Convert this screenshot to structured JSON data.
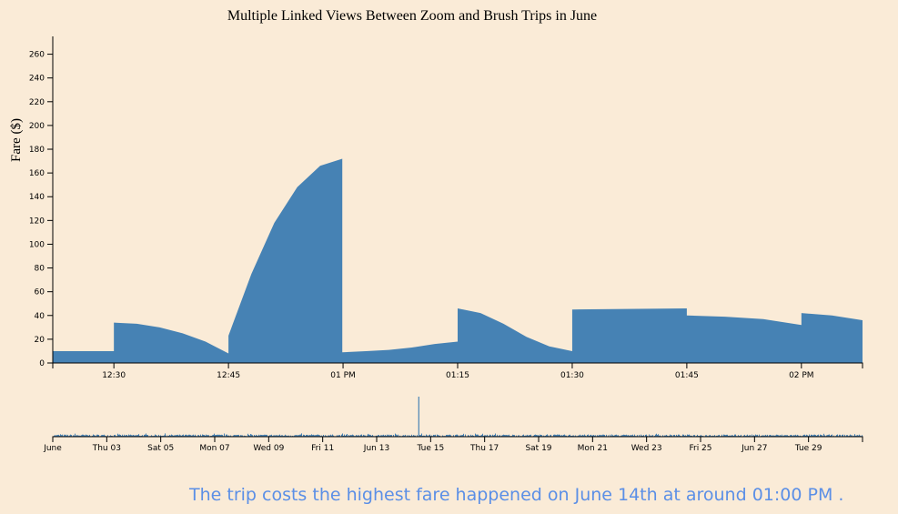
{
  "caption": "The trip costs the highest fare happened on June 14th at around 01:00 PM .",
  "chart_data": [
    {
      "type": "area",
      "title": "Multiple Linked Views Between Zoom and Brush Trips in June",
      "ylabel": "Fare ($)",
      "xlabel": "",
      "ylim": [
        0,
        275
      ],
      "yticks": [
        0,
        20,
        40,
        60,
        80,
        100,
        120,
        140,
        160,
        180,
        200,
        220,
        240,
        260
      ],
      "xlim": [
        "12:22",
        "02:08"
      ],
      "xticks": [
        {
          "t": "12:30",
          "label": "12:30"
        },
        {
          "t": "12:45",
          "label": "12:45"
        },
        {
          "t": "13:00",
          "label": "01 PM"
        },
        {
          "t": "13:15",
          "label": "01:15"
        },
        {
          "t": "13:30",
          "label": "01:30"
        },
        {
          "t": "13:45",
          "label": "01:45"
        },
        {
          "t": "14:00",
          "label": "02 PM"
        }
      ],
      "series": [
        {
          "points": [
            [
              "12:28",
              10
            ],
            [
              "12:30",
              10
            ],
            [
              "12:30",
              34
            ],
            [
              "12:33",
              33
            ],
            [
              "12:36",
              30
            ],
            [
              "12:39",
              25
            ],
            [
              "12:42",
              18
            ],
            [
              "12:45",
              8
            ],
            [
              "12:45",
              23
            ],
            [
              "12:48",
              75
            ],
            [
              "12:51",
              118
            ],
            [
              "12:54",
              148
            ],
            [
              "12:57",
              166
            ],
            [
              "12:59.9",
              172
            ],
            [
              "12:59.9",
              9
            ],
            [
              "13:03",
              10
            ],
            [
              "13:06",
              11
            ],
            [
              "13:09",
              13
            ],
            [
              "13:12",
              16
            ],
            [
              "13:15",
              18
            ],
            [
              "13:15",
              46
            ],
            [
              "13:18",
              42
            ],
            [
              "13:21",
              33
            ],
            [
              "13:24",
              22
            ],
            [
              "13:27",
              14
            ],
            [
              "13:30",
              10
            ],
            [
              "13:30",
              45
            ],
            [
              "13:37",
              45.5
            ],
            [
              "13:45",
              46
            ],
            [
              "13:45",
              40
            ],
            [
              "13:50",
              39
            ],
            [
              "13:55",
              37
            ],
            [
              "14:00",
              32
            ],
            [
              "14:00",
              42
            ],
            [
              "14:04",
              40
            ],
            [
              "14:08",
              36
            ]
          ]
        }
      ]
    },
    {
      "type": "bar",
      "title": "",
      "xlim": [
        "Jun 01",
        "Jul 01"
      ],
      "xticks": [
        "June",
        "Thu 03",
        "Sat 05",
        "Mon 07",
        "Wed 09",
        "Fri 11",
        "Jun 13",
        "Tue 15",
        "Thu 17",
        "Sat 19",
        "Mon 21",
        "Wed 23",
        "Fri 25",
        "Jun 27",
        "Tue 29"
      ],
      "peak": {
        "day": 13.54,
        "value": 270
      },
      "typical_range": [
        3,
        15
      ]
    }
  ],
  "colors": {
    "background": "#faebd7",
    "area": "#4682b4",
    "caption": "#5b8fe6"
  }
}
